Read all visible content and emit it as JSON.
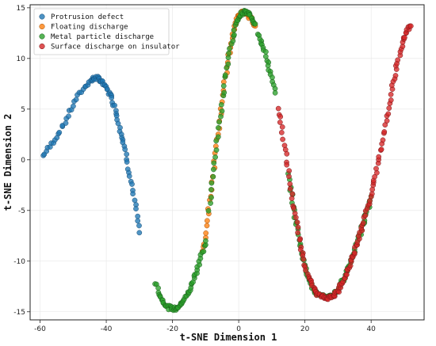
{
  "chart_data": {
    "type": "scatter",
    "title": "",
    "xlabel": "t-SNE Dimension 1",
    "ylabel": "t-SNE Dimension 2",
    "xlim": [
      -63,
      56
    ],
    "ylim": [
      -15.8,
      15.3
    ],
    "xticks": [
      -60,
      -40,
      -20,
      0,
      20,
      40
    ],
    "yticks": [
      -15,
      -10,
      -5,
      0,
      5,
      10,
      15
    ],
    "grid": true,
    "legend_position": "top-left",
    "series": [
      {
        "name": "Protrusion defect",
        "color": "#1f77b4",
        "edge": "#1a4f78",
        "segments": [
          {
            "x": [
              -59,
              -57,
              -55,
              -53,
              -51,
              -49,
              -47,
              -45,
              -44,
              -43,
              -42,
              -41,
              -40,
              -39,
              -38,
              -37,
              -36,
              -35,
              -34,
              -33,
              -32,
              -31,
              -30
            ],
            "y": [
              0.4,
              1.3,
              2.3,
              3.4,
              4.7,
              6.0,
              7.0,
              7.7,
              8.0,
              8.1,
              7.9,
              7.6,
              7.1,
              6.6,
              5.8,
              4.7,
              3.3,
              2.0,
              0.5,
              -1.2,
              -3.0,
              -5.0,
              -7.2
            ]
          }
        ]
      },
      {
        "name": "Floating discharge",
        "color": "#ff7f0e",
        "edge": "#a35208",
        "segments": [
          {
            "x": [
              -11,
              -10,
              -9,
              -8,
              -7,
              -6,
              -5,
              -4,
              -3,
              -2,
              -1,
              0,
              1,
              2,
              3,
              4,
              5
            ],
            "y": [
              -9.2,
              -7.2,
              -4.8,
              -2.2,
              0.6,
              3.2,
              5.8,
              8.2,
              10.3,
              12.0,
              13.4,
              14.3,
              14.6,
              14.5,
              14.2,
              13.8,
              13.2
            ]
          }
        ]
      },
      {
        "name": "Metal particle discharge",
        "color": "#2ca02c",
        "edge": "#1a5e1a",
        "segments": [
          {
            "x": [
              -25,
              -24,
              -23,
              -22,
              -21,
              -20,
              -19,
              -18,
              -17,
              -16,
              -15,
              -14,
              -13,
              -12,
              -11,
              -10
            ],
            "y": [
              -12.2,
              -13.2,
              -13.9,
              -14.3,
              -14.6,
              -14.7,
              -14.7,
              -14.5,
              -14.1,
              -13.6,
              -13.0,
              -12.2,
              -11.3,
              -10.3,
              -9.2,
              -8.0
            ]
          },
          {
            "x": [
              -9,
              -8,
              -7,
              -6,
              -5,
              -4,
              -3,
              -2,
              -1,
              0,
              1,
              2,
              3,
              4,
              5
            ],
            "y": [
              -5.0,
              -2.4,
              0.4,
              3.0,
              5.6,
              8.0,
              10.1,
              11.8,
              13.2,
              14.1,
              14.5,
              14.6,
              14.4,
              14.0,
              13.4
            ]
          },
          {
            "x": [
              6,
              7,
              8,
              9,
              10,
              11
            ],
            "y": [
              12.5,
              11.6,
              10.5,
              9.3,
              8.0,
              6.6
            ]
          },
          {
            "x": [
              15,
              16,
              17,
              18,
              19,
              20,
              21,
              22,
              23,
              24,
              25,
              26,
              27,
              28,
              29,
              30,
              31,
              32,
              33,
              34,
              35,
              36,
              37,
              38,
              39,
              40
            ],
            "y": [
              -1.5,
              -3.6,
              -5.6,
              -7.4,
              -9.0,
              -10.4,
              -11.5,
              -12.4,
              -13.0,
              -13.3,
              -13.5,
              -13.5,
              -13.5,
              -13.4,
              -13.2,
              -12.8,
              -12.2,
              -11.5,
              -10.7,
              -9.9,
              -9.0,
              -8.0,
              -7.0,
              -5.9,
              -4.8,
              -3.6
            ]
          }
        ]
      },
      {
        "name": "Surface discharge on insulator",
        "color": "#d62728",
        "edge": "#7a1516",
        "segments": [
          {
            "x": [
              12,
              13,
              14,
              15,
              16,
              17,
              18,
              19,
              20,
              21,
              22,
              23,
              24,
              25,
              26,
              27,
              28,
              29,
              30,
              31,
              32,
              33,
              34,
              35,
              36,
              37,
              38,
              39,
              40,
              41,
              42,
              43,
              44,
              45,
              46,
              47,
              48,
              49,
              50,
              51,
              52
            ],
            "y": [
              5.0,
              3.2,
              1.0,
              -1.2,
              -3.4,
              -5.4,
              -7.2,
              -8.9,
              -10.3,
              -11.4,
              -12.3,
              -12.9,
              -13.3,
              -13.5,
              -13.6,
              -13.6,
              -13.5,
              -13.3,
              -12.9,
              -12.3,
              -11.6,
              -10.8,
              -9.9,
              -9.0,
              -8.0,
              -6.9,
              -5.8,
              -4.6,
              -3.3,
              -1.9,
              -0.4,
              1.2,
              2.9,
              4.7,
              6.4,
              8.1,
              9.6,
              10.9,
              12.0,
              12.8,
              13.2
            ]
          }
        ]
      }
    ]
  }
}
